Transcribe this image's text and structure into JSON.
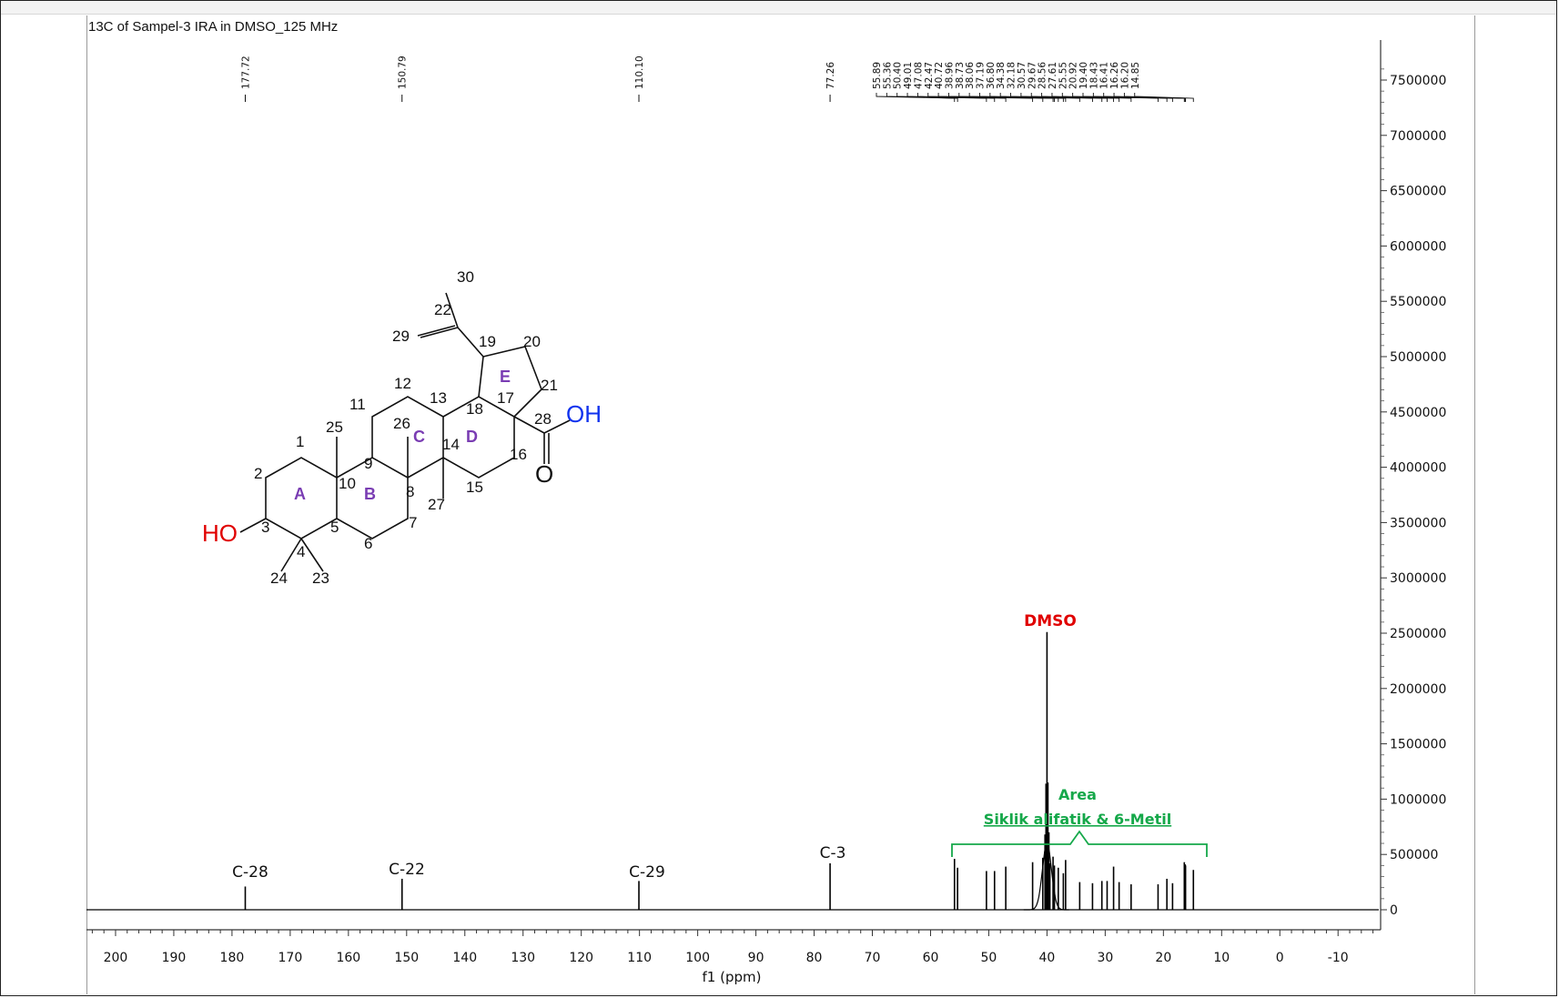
{
  "spectrum_title": "13C of Sampel-3 IRA in DMSO_125 MHz",
  "colors": {
    "annotation_red": "#e00000",
    "annotation_green": "#15a84a",
    "ring_purple": "#7a3db3",
    "hydroxyl_blue": "#1133ee",
    "trace": "#000000"
  },
  "chart_data": {
    "type": "line",
    "xlabel": "f1 (ppm)",
    "xlim": [
      205,
      -17
    ],
    "ylim": [
      -150000,
      7700000
    ],
    "x_axis_reversed": true,
    "y_axis_side": "right",
    "grid": false,
    "x_ticks": [
      200,
      190,
      180,
      170,
      160,
      150,
      140,
      130,
      120,
      110,
      100,
      90,
      80,
      70,
      60,
      50,
      40,
      30,
      20,
      10,
      0,
      -10
    ],
    "y_ticks": [
      0,
      500000,
      1000000,
      1500000,
      2000000,
      2500000,
      3000000,
      3500000,
      4000000,
      4500000,
      5000000,
      5500000,
      6000000,
      6500000,
      7000000,
      7500000
    ],
    "peak_labels": [
      "177.72",
      "150.79",
      "110.10",
      "77.26",
      "55.89",
      "55.36",
      "50.40",
      "49.01",
      "47.08",
      "42.47",
      "40.72",
      "38.96",
      "38.73",
      "38.06",
      "37.19",
      "36.80",
      "34.38",
      "32.18",
      "30.57",
      "29.67",
      "28.56",
      "27.61",
      "25.55",
      "20.92",
      "19.40",
      "18.43",
      "16.41",
      "16.26",
      "16.20",
      "14.85"
    ],
    "peaks": [
      {
        "ppm": 177.72,
        "intensity": 210000
      },
      {
        "ppm": 150.79,
        "intensity": 280000
      },
      {
        "ppm": 110.1,
        "intensity": 260000
      },
      {
        "ppm": 77.26,
        "intensity": 420000
      },
      {
        "ppm": 55.89,
        "intensity": 460000
      },
      {
        "ppm": 55.36,
        "intensity": 380000
      },
      {
        "ppm": 50.4,
        "intensity": 350000
      },
      {
        "ppm": 49.01,
        "intensity": 350000
      },
      {
        "ppm": 47.08,
        "intensity": 390000
      },
      {
        "ppm": 42.47,
        "intensity": 430000
      },
      {
        "ppm": 40.72,
        "intensity": 470000
      },
      {
        "ppm": 40.0,
        "intensity": 2510000
      },
      {
        "ppm": 39.84,
        "intensity": 1150000
      },
      {
        "ppm": 40.17,
        "intensity": 1140000
      },
      {
        "ppm": 39.67,
        "intensity": 700000
      },
      {
        "ppm": 40.34,
        "intensity": 680000
      },
      {
        "ppm": 39.5,
        "intensity": 420000
      },
      {
        "ppm": 38.96,
        "intensity": 480000
      },
      {
        "ppm": 38.73,
        "intensity": 400000
      },
      {
        "ppm": 38.06,
        "intensity": 380000
      },
      {
        "ppm": 37.19,
        "intensity": 330000
      },
      {
        "ppm": 36.8,
        "intensity": 450000
      },
      {
        "ppm": 34.38,
        "intensity": 250000
      },
      {
        "ppm": 32.18,
        "intensity": 240000
      },
      {
        "ppm": 30.57,
        "intensity": 260000
      },
      {
        "ppm": 29.67,
        "intensity": 260000
      },
      {
        "ppm": 28.56,
        "intensity": 390000
      },
      {
        "ppm": 27.61,
        "intensity": 250000
      },
      {
        "ppm": 25.55,
        "intensity": 230000
      },
      {
        "ppm": 20.92,
        "intensity": 230000
      },
      {
        "ppm": 19.4,
        "intensity": 280000
      },
      {
        "ppm": 18.43,
        "intensity": 240000
      },
      {
        "ppm": 16.41,
        "intensity": 430000
      },
      {
        "ppm": 16.26,
        "intensity": 410000
      },
      {
        "ppm": 16.2,
        "intensity": 400000
      },
      {
        "ppm": 14.85,
        "intensity": 360000
      }
    ],
    "annotations": [
      {
        "text": "C-28",
        "ppm": 177.72
      },
      {
        "text": "C-22",
        "ppm": 150.79
      },
      {
        "text": "C-29",
        "ppm": 110.1
      },
      {
        "text": "C-3",
        "ppm": 77.26
      },
      {
        "text": "DMSO",
        "ppm": 40.0
      },
      {
        "text": "Area",
        "ppm": 35
      },
      {
        "text": "Siklik alifatik & 6-Metil",
        "ppm": 35
      }
    ],
    "region_bracket": {
      "from_ppm": 57,
      "to_ppm": 13
    }
  },
  "structure": {
    "atom_numbers": [
      "1",
      "2",
      "3",
      "4",
      "5",
      "6",
      "7",
      "8",
      "9",
      "10",
      "11",
      "12",
      "13",
      "14",
      "15",
      "16",
      "17",
      "18",
      "19",
      "20",
      "21",
      "22",
      "23",
      "24",
      "25",
      "26",
      "27",
      "28",
      "29",
      "30"
    ],
    "ring_labels": [
      "A",
      "B",
      "C",
      "D",
      "E"
    ],
    "ho_label": "HO",
    "oh_label": "OH",
    "o_label": "O"
  }
}
